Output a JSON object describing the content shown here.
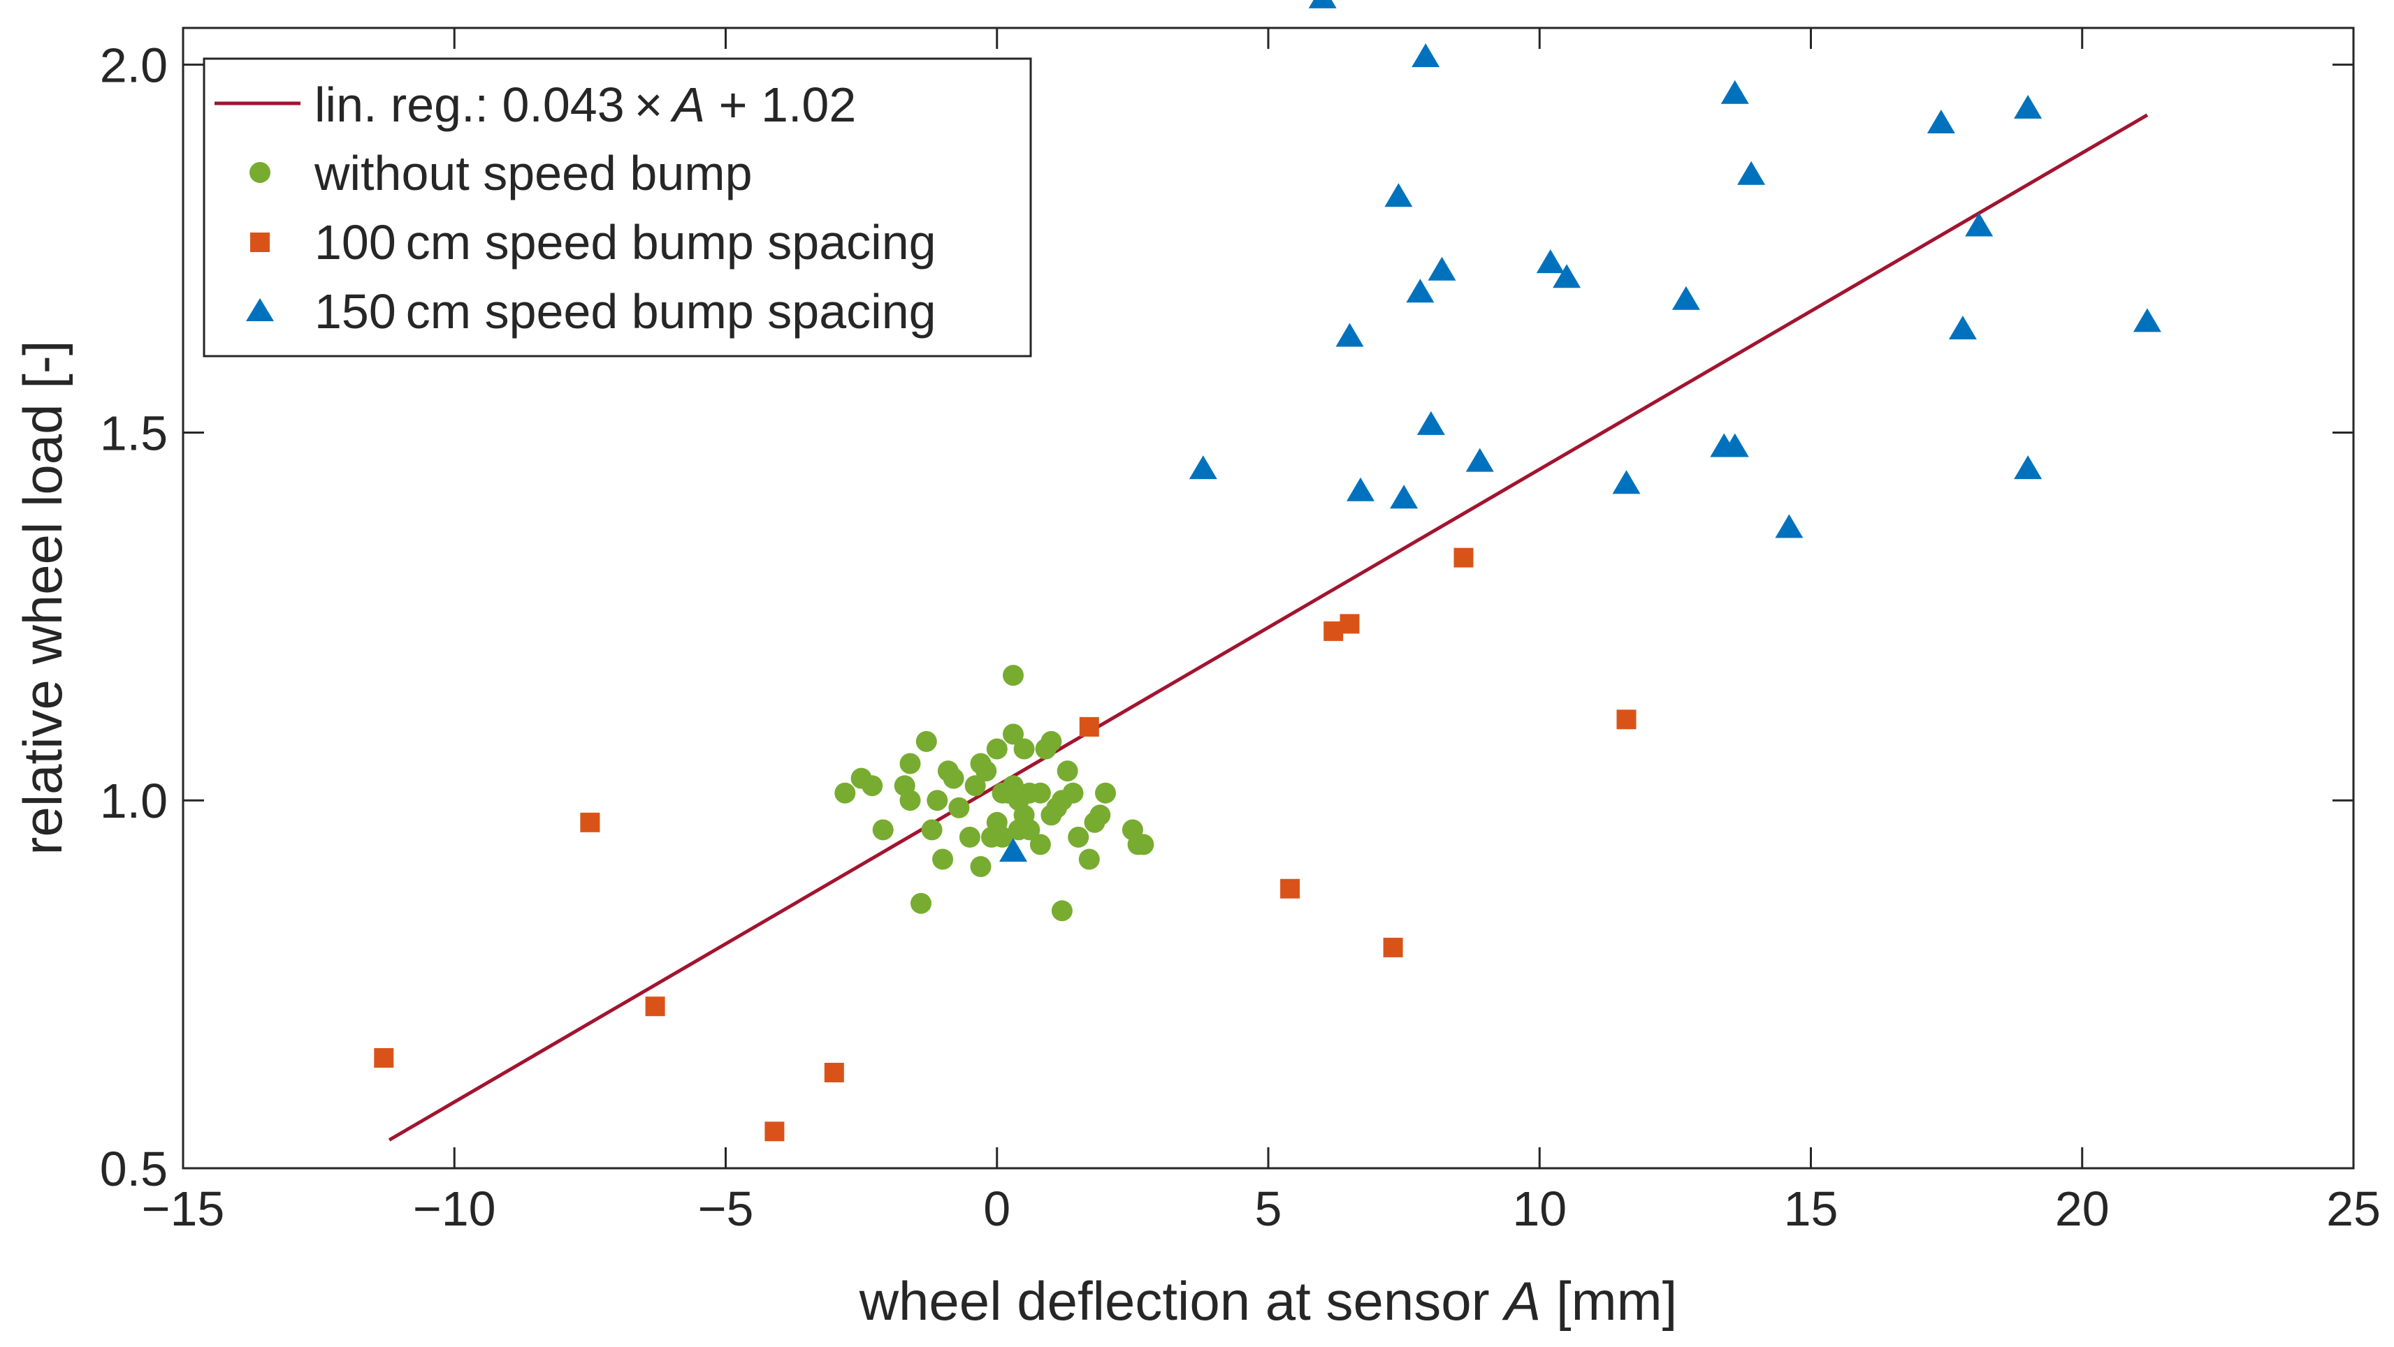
{
  "chart_data": {
    "type": "scatter",
    "xlabel": "wheel deflection at sensor A [mm]",
    "xlabel_parts": {
      "before": "wheel deflection at sensor ",
      "var": "A",
      "after": " [mm]"
    },
    "ylabel": "relative wheel load [-]",
    "xlim": [
      -15,
      25
    ],
    "ylim": [
      0.5,
      2.05
    ],
    "xticks": [
      -15,
      -10,
      -5,
      0,
      5,
      10,
      15,
      20,
      25
    ],
    "xtick_labels": [
      "−15",
      "−10",
      "−5",
      "0",
      "5",
      "10",
      "15",
      "20",
      "25"
    ],
    "yticks": [
      0.5,
      1.0,
      1.5,
      2.0
    ],
    "ytick_labels": [
      "0.5",
      "1.0",
      "1.5",
      "2.0"
    ],
    "grid": false,
    "legend_position": "top-left",
    "regression": {
      "label": "lin. reg.: 0.043 × A + 1.02",
      "label_parts": {
        "before": "lin. reg.: 0.043 × ",
        "var": "A",
        "after": " + 1.02"
      },
      "slope": 0.043,
      "intercept": 1.02,
      "x_range": [
        -11.2,
        21.2
      ],
      "color": "#A2142F"
    },
    "series": [
      {
        "name": "without speed bump",
        "marker": "circle",
        "color": "#77AC30",
        "points": [
          [
            -2.8,
            1.01
          ],
          [
            -2.5,
            1.03
          ],
          [
            -2.3,
            1.02
          ],
          [
            -2.1,
            0.96
          ],
          [
            -1.7,
            1.02
          ],
          [
            -1.6,
            1.05
          ],
          [
            -1.6,
            1.0
          ],
          [
            -1.4,
            0.86
          ],
          [
            -1.3,
            1.08
          ],
          [
            -1.2,
            0.96
          ],
          [
            -1.1,
            1.0
          ],
          [
            -1.0,
            0.92
          ],
          [
            -0.9,
            1.04
          ],
          [
            -0.8,
            1.03
          ],
          [
            -0.7,
            0.99
          ],
          [
            -0.5,
            0.95
          ],
          [
            -0.4,
            1.02
          ],
          [
            -0.3,
            1.05
          ],
          [
            -0.3,
            0.91
          ],
          [
            -0.2,
            1.04
          ],
          [
            -0.1,
            0.95
          ],
          [
            0.0,
            1.07
          ],
          [
            0.0,
            0.97
          ],
          [
            0.1,
            1.01
          ],
          [
            0.1,
            0.95
          ],
          [
            0.2,
            1.01
          ],
          [
            0.3,
            1.09
          ],
          [
            0.3,
            1.17
          ],
          [
            0.3,
            1.02
          ],
          [
            0.4,
            0.96
          ],
          [
            0.4,
            1.0
          ],
          [
            0.5,
            1.07
          ],
          [
            0.5,
            0.98
          ],
          [
            0.6,
            0.96
          ],
          [
            0.6,
            1.01
          ],
          [
            0.8,
            1.01
          ],
          [
            0.8,
            0.94
          ],
          [
            0.9,
            1.07
          ],
          [
            1.0,
            1.08
          ],
          [
            1.0,
            0.98
          ],
          [
            1.1,
            0.99
          ],
          [
            1.2,
            0.85
          ],
          [
            1.2,
            1.0
          ],
          [
            1.3,
            1.04
          ],
          [
            1.4,
            1.01
          ],
          [
            1.5,
            0.95
          ],
          [
            1.7,
            0.92
          ],
          [
            1.8,
            0.97
          ],
          [
            1.9,
            0.98
          ],
          [
            2.0,
            1.01
          ],
          [
            2.5,
            0.96
          ],
          [
            2.6,
            0.94
          ],
          [
            2.7,
            0.94
          ]
        ]
      },
      {
        "name": "100 cm speed bump spacing",
        "marker": "square",
        "color": "#D95319",
        "points": [
          [
            -11.3,
            0.65
          ],
          [
            -7.5,
            0.97
          ],
          [
            -6.3,
            0.72
          ],
          [
            -4.1,
            0.55
          ],
          [
            -3.0,
            0.63
          ],
          [
            1.7,
            1.1
          ],
          [
            5.4,
            0.88
          ],
          [
            6.2,
            1.23
          ],
          [
            6.5,
            1.24
          ],
          [
            7.3,
            0.8
          ],
          [
            8.6,
            1.33
          ],
          [
            11.6,
            1.11
          ]
        ]
      },
      {
        "name": "150 cm speed bump spacing",
        "marker": "triangle",
        "color": "#0072BD",
        "points": [
          [
            0.3,
            0.93
          ],
          [
            3.8,
            1.45
          ],
          [
            6.0,
            2.09
          ],
          [
            6.5,
            1.63
          ],
          [
            6.7,
            1.42
          ],
          [
            7.4,
            1.82
          ],
          [
            7.5,
            1.41
          ],
          [
            7.8,
            1.69
          ],
          [
            7.9,
            2.01
          ],
          [
            8.0,
            1.51
          ],
          [
            8.2,
            1.72
          ],
          [
            8.9,
            1.46
          ],
          [
            10.2,
            1.73
          ],
          [
            10.5,
            1.71
          ],
          [
            11.6,
            1.43
          ],
          [
            12.7,
            1.68
          ],
          [
            13.4,
            1.48
          ],
          [
            13.6,
            1.48
          ],
          [
            13.6,
            1.96
          ],
          [
            13.9,
            1.85
          ],
          [
            14.6,
            1.37
          ],
          [
            17.4,
            1.92
          ],
          [
            17.8,
            1.64
          ],
          [
            18.1,
            1.78
          ],
          [
            19.0,
            1.94
          ],
          [
            19.0,
            1.45
          ],
          [
            21.2,
            1.65
          ]
        ]
      }
    ]
  }
}
